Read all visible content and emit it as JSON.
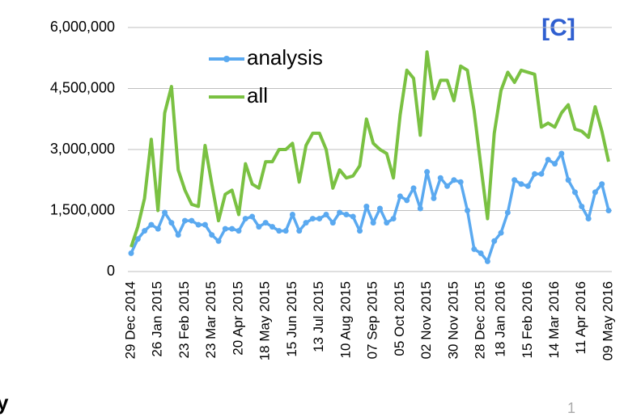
{
  "chart_data": {
    "type": "line",
    "annotations": [
      "[C]",
      "1",
      "y"
    ],
    "categories": [
      "29 Dec 2014",
      null,
      null,
      null,
      "26 Jan 2015",
      null,
      null,
      null,
      "23 Feb 2015",
      null,
      null,
      null,
      "23 Mar 2015",
      null,
      null,
      null,
      "20 Apr 2015",
      null,
      null,
      null,
      "18 May 2015",
      null,
      null,
      null,
      "15 Jun 2015",
      null,
      null,
      null,
      "13 Jul 2015",
      null,
      null,
      null,
      "10 Aug 2015",
      null,
      null,
      null,
      "07 Sep 2015",
      null,
      null,
      null,
      "05 Oct 2015",
      null,
      null,
      null,
      "02 Nov 2015",
      null,
      null,
      null,
      "30 Nov 2015",
      null,
      null,
      null,
      "28 Dec 2015",
      null,
      null,
      "18 Jan 2016",
      null,
      null,
      null,
      "15 Feb 2016",
      null,
      null,
      null,
      "14 Mar 2016",
      null,
      null,
      null,
      "11 Apr 2016",
      null,
      null,
      null,
      "09 May 2016"
    ],
    "series": [
      {
        "name": "analysis",
        "color": "#5aa9f0",
        "markers": true,
        "values": [
          450000,
          800000,
          1000000,
          1150000,
          1050000,
          1450000,
          1200000,
          900000,
          1250000,
          1250000,
          1150000,
          1150000,
          900000,
          750000,
          1050000,
          1050000,
          1000000,
          1300000,
          1350000,
          1100000,
          1200000,
          1100000,
          1000000,
          1000000,
          1400000,
          1000000,
          1200000,
          1300000,
          1300000,
          1400000,
          1200000,
          1450000,
          1400000,
          1350000,
          1000000,
          1600000,
          1200000,
          1550000,
          1200000,
          1300000,
          1850000,
          1750000,
          2050000,
          1550000,
          2450000,
          1800000,
          2300000,
          2100000,
          2250000,
          2200000,
          1500000,
          550000,
          450000,
          250000,
          750000,
          950000,
          1450000,
          2250000,
          2150000,
          2100000,
          2400000,
          2400000,
          2750000,
          2650000,
          2900000,
          2250000,
          1950000,
          1600000,
          1300000,
          1950000,
          2150000,
          1500000
        ]
      },
      {
        "name": "all",
        "color": "#7ac142",
        "markers": false,
        "values": [
          600000,
          1100000,
          1800000,
          3250000,
          1500000,
          3900000,
          4550000,
          2500000,
          2000000,
          1650000,
          1600000,
          3100000,
          2150000,
          1250000,
          1900000,
          2000000,
          1400000,
          2650000,
          2150000,
          2050000,
          2700000,
          2700000,
          3000000,
          3000000,
          3150000,
          2200000,
          3100000,
          3400000,
          3400000,
          3000000,
          2050000,
          2500000,
          2300000,
          2350000,
          2600000,
          3750000,
          3150000,
          3000000,
          2900000,
          2300000,
          3850000,
          4950000,
          4750000,
          3350000,
          5400000,
          4250000,
          4700000,
          4700000,
          4200000,
          5050000,
          4950000,
          3950000,
          2600000,
          1300000,
          3400000,
          4450000,
          4900000,
          4650000,
          4950000,
          4900000,
          4850000,
          3550000,
          3650000,
          3550000,
          3900000,
          4100000,
          3500000,
          3450000,
          3300000,
          4050000,
          3450000,
          2700000
        ]
      }
    ],
    "ylim": [
      0,
      6000000
    ],
    "yticks": [
      0,
      {
        "value": 1500000,
        "label": "1,500,000"
      },
      {
        "value": 3000000,
        "label": "3,000,000"
      },
      {
        "value": 4500000,
        "label": "4,500,000"
      },
      {
        "value": 6000000,
        "label": "6,000,000"
      }
    ],
    "grid": true,
    "legend": "top-left"
  }
}
